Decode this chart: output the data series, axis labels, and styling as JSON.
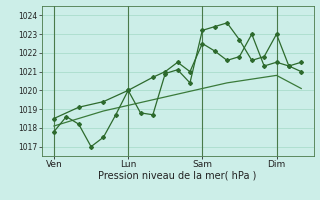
{
  "title": "",
  "xlabel": "Pression niveau de la mer( hPa )",
  "background_color": "#cceee8",
  "grid_color": "#aaddcc",
  "line_color_dark": "#2d6a2d",
  "line_color_mid": "#3a7a3a",
  "ylim": [
    1016.5,
    1024.5
  ],
  "yticks": [
    1017,
    1018,
    1019,
    1020,
    1021,
    1022,
    1023,
    1024
  ],
  "xtick_labels": [
    "Ven",
    "Lun",
    "Sam",
    "Dim"
  ],
  "xtick_positions": [
    1,
    4,
    7,
    10
  ],
  "vline_positions": [
    1,
    4,
    7,
    10
  ],
  "xlim": [
    0.5,
    11.5
  ],
  "series1_x": [
    1.0,
    1.5,
    2.0,
    2.5,
    3.0,
    3.5,
    4.0,
    4.5,
    5.0,
    5.5,
    6.0,
    6.5,
    7.0,
    7.5,
    8.0,
    8.5,
    9.0,
    9.5,
    10.0,
    10.5,
    11.0
  ],
  "series1_y": [
    1017.8,
    1018.6,
    1018.2,
    1017.0,
    1017.5,
    1018.7,
    1020.0,
    1018.8,
    1018.7,
    1020.9,
    1021.1,
    1020.4,
    1023.2,
    1023.4,
    1023.6,
    1022.7,
    1021.6,
    1021.8,
    1023.0,
    1021.3,
    1021.5
  ],
  "series2_x": [
    1.0,
    2.0,
    3.0,
    4.0,
    5.0,
    5.5,
    6.0,
    6.5,
    7.0,
    7.5,
    8.0,
    8.5,
    9.0,
    9.5,
    10.0,
    10.5,
    11.0
  ],
  "series2_y": [
    1018.5,
    1019.1,
    1019.4,
    1020.0,
    1020.7,
    1021.0,
    1021.5,
    1021.0,
    1022.5,
    1022.1,
    1021.6,
    1021.8,
    1023.0,
    1021.3,
    1021.5,
    1021.3,
    1021.0
  ],
  "series3_x": [
    1.0,
    2.0,
    3.0,
    4.0,
    5.0,
    6.0,
    7.0,
    8.0,
    9.0,
    10.0,
    11.0
  ],
  "series3_y": [
    1018.1,
    1018.5,
    1018.9,
    1019.2,
    1019.5,
    1019.8,
    1020.1,
    1020.4,
    1020.6,
    1020.8,
    1020.1
  ]
}
